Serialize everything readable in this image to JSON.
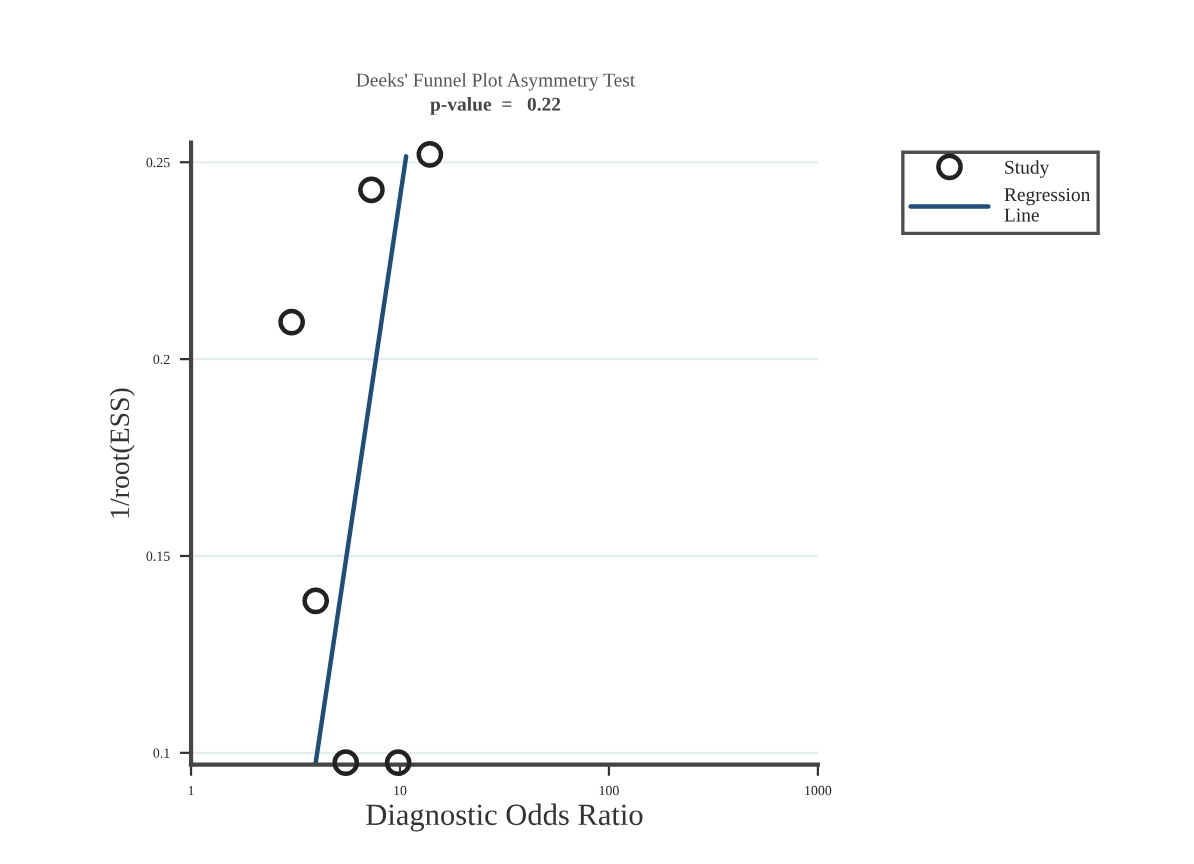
{
  "chart_data": {
    "type": "scatter",
    "title": "Deeks' Funnel Plot Asymmetry Test",
    "subtitle": "p-value  =   0.22",
    "xlabel": "Diagnostic Odds Ratio",
    "ylabel": "1/root(ESS)",
    "log": "x",
    "xlim": [
      1,
      1000
    ],
    "xticks": [
      1,
      10,
      100,
      1000
    ],
    "ylim": [
      0.097,
      0.255
    ],
    "yticks": [
      0.1,
      0.15,
      0.2,
      0.25
    ],
    "grid": "y",
    "legend": "top right",
    "series": [
      {
        "name": "Study",
        "marker": "circle",
        "color": "#222222",
        "x": [
          3.03,
          3.95,
          5.5,
          7.3,
          9.8,
          13.9
        ],
        "values": [
          0.2094,
          0.1386,
          0.0975,
          0.243,
          0.0975,
          0.252
        ]
      },
      {
        "name": "Regression Line",
        "type": "line",
        "color": "#1f4e79",
        "x": [
          3.95,
          10.7
        ],
        "values": [
          0.0975,
          0.2515
        ]
      }
    ]
  }
}
